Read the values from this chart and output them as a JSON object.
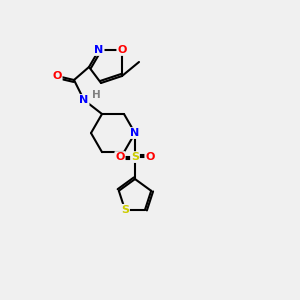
{
  "background_color": "#f0f0f0",
  "bond_color": "#000000",
  "atom_colors": {
    "O": "#ff0000",
    "N": "#0000ff",
    "S": "#cccc00",
    "H": "#808080",
    "C": "#000000"
  },
  "figsize": [
    3.0,
    3.0
  ],
  "dpi": 100
}
